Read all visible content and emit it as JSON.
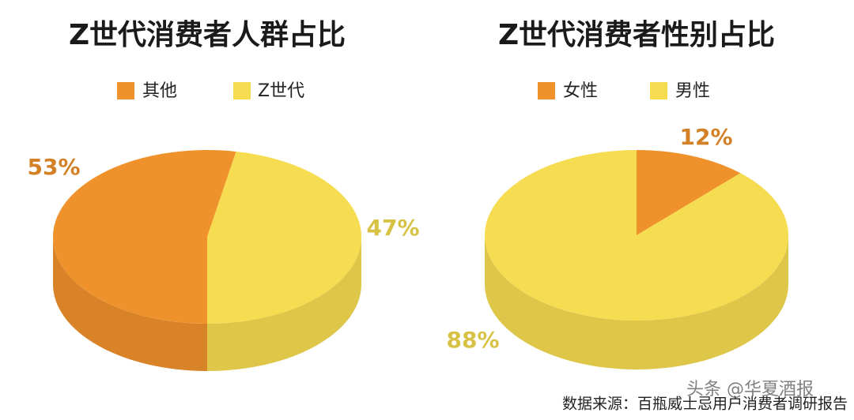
{
  "chart_data": [
    {
      "type": "pie3d",
      "title": "Z世代消费者人群占比",
      "categories": [
        "其他",
        "Z世代"
      ],
      "values": [
        53,
        47
      ],
      "value_labels": [
        "53%",
        "47%"
      ],
      "colors": [
        "#f0922b",
        "#f5dc50"
      ]
    },
    {
      "type": "pie3d",
      "title": "Z世代消费者性别占比",
      "categories": [
        "女性",
        "男性"
      ],
      "values": [
        12,
        88
      ],
      "value_labels": [
        "12%",
        "88%"
      ],
      "colors": [
        "#f0922b",
        "#f5dc50"
      ]
    }
  ],
  "source": "数据来源：百瓶威士忌用户消费者调研报告",
  "watermark": "头条 @华夏酒报"
}
